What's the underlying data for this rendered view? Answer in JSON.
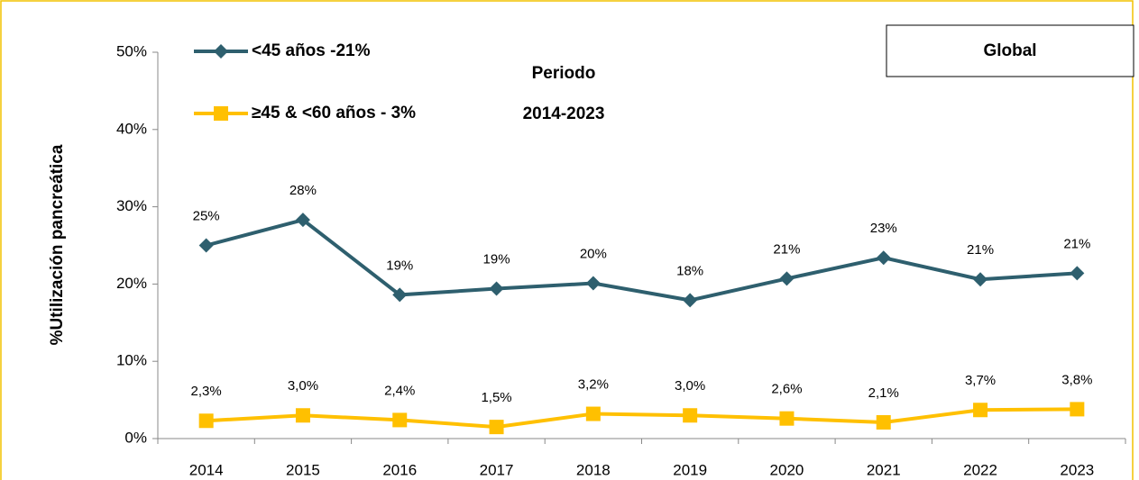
{
  "chart_data": {
    "type": "line",
    "annotations": [
      "Periodo",
      "2014-2023"
    ],
    "box_label": "Global",
    "ylabel": "%Utilización pancreática",
    "categories": [
      "2014",
      "2015",
      "2016",
      "2017",
      "2018",
      "2019",
      "2020",
      "2021",
      "2022",
      "2023"
    ],
    "series": [
      {
        "name": "<45 años -21%",
        "color": "#2e5f6e",
        "marker": "diamond",
        "values": [
          25.0,
          28.3,
          18.6,
          19.4,
          20.1,
          17.9,
          20.7,
          23.4,
          20.6,
          21.4
        ],
        "value_labels": [
          "25%",
          "28%",
          "19%",
          "19%",
          "20%",
          "18%",
          "21%",
          "23%",
          "21%",
          "21%"
        ]
      },
      {
        "name": "≥45 & <60 años - 3%",
        "color": "#ffc000",
        "marker": "square",
        "values": [
          2.3,
          3.0,
          2.4,
          1.5,
          3.2,
          3.0,
          2.6,
          2.1,
          3.7,
          3.8
        ],
        "value_labels": [
          "2,3%",
          "3,0%",
          "2,4%",
          "1,5%",
          "3,2%",
          "3,0%",
          "2,6%",
          "2,1%",
          "3,7%",
          "3,8%"
        ]
      }
    ],
    "ylim": [
      0,
      50
    ],
    "yticks": [
      {
        "value": 0,
        "label": "0%"
      },
      {
        "value": 10,
        "label": "10%"
      },
      {
        "value": 20,
        "label": "20%"
      },
      {
        "value": 30,
        "label": "30%"
      },
      {
        "value": 40,
        "label": "40%"
      },
      {
        "value": 50,
        "label": "50%"
      }
    ],
    "grid": false,
    "legend": "top-left"
  }
}
